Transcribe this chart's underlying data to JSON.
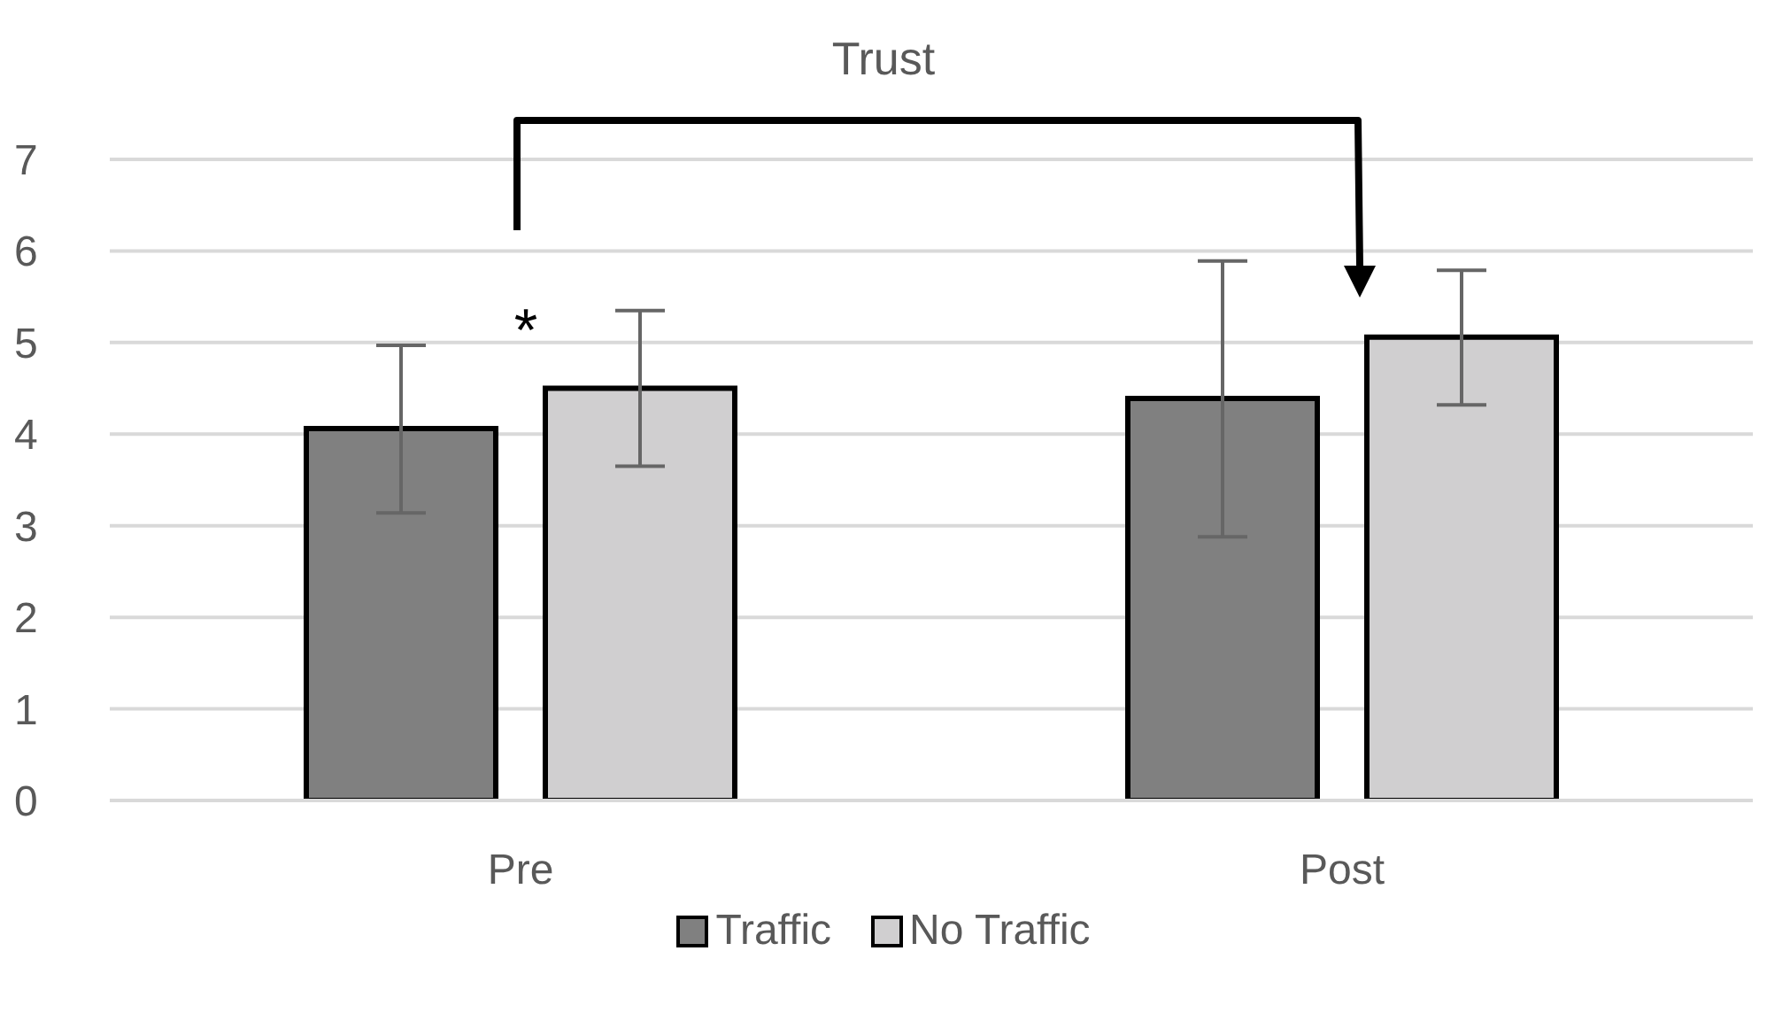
{
  "chart_data": {
    "type": "bar",
    "title": "Trust",
    "categories": [
      "Pre",
      "Post"
    ],
    "series": [
      {
        "name": "Traffic",
        "color": "#808080",
        "values": [
          4.06,
          4.39
        ],
        "errors": [
          [
            3.14,
            4.97
          ],
          [
            2.88,
            5.89
          ]
        ]
      },
      {
        "name": "No Traffic",
        "color": "#d0cfd0",
        "values": [
          4.5,
          5.06
        ],
        "errors": [
          [
            3.65,
            5.35
          ],
          [
            4.32,
            5.79
          ]
        ]
      }
    ],
    "ylim": [
      0,
      7
    ],
    "yticks": [
      0,
      1,
      2,
      3,
      4,
      5,
      6,
      7
    ],
    "grid": "y",
    "legend": "bottom",
    "annotations": [
      "*"
    ]
  }
}
